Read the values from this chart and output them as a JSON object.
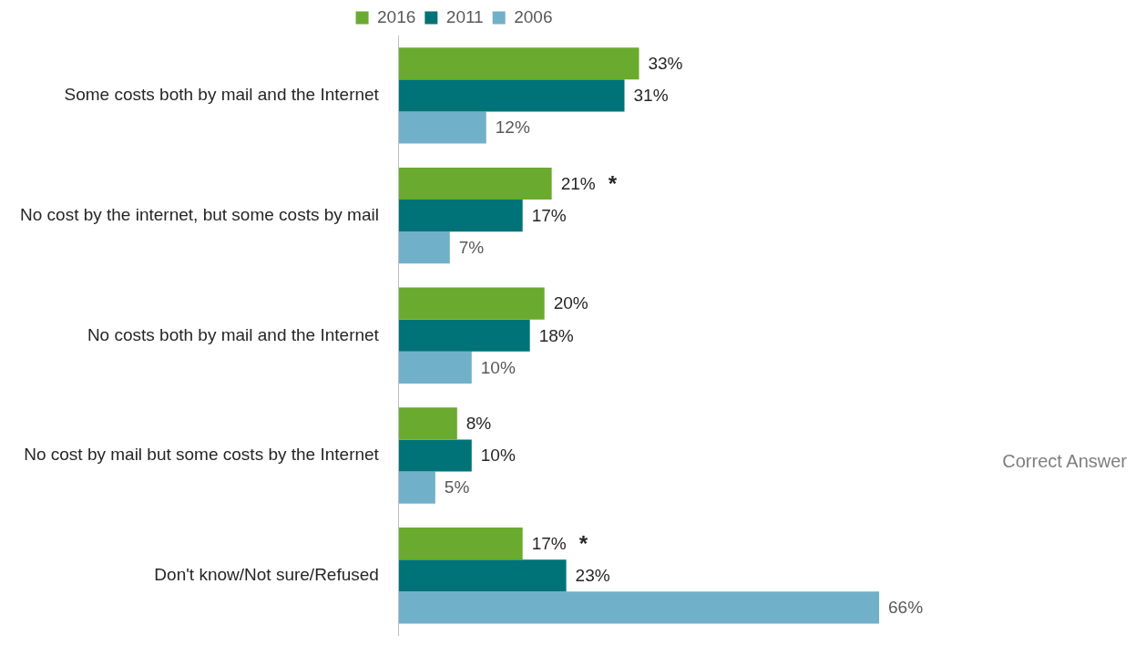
{
  "chart_data": {
    "type": "bar",
    "orientation": "horizontal",
    "legend": "top",
    "categories": [
      "Some costs both by mail and the Internet",
      "No cost by the internet, but some costs by mail",
      "No costs both by mail and the Internet",
      "No cost by mail but some costs by the Internet",
      "Don't know/Not sure/Refused"
    ],
    "series": [
      {
        "name": "2016",
        "color": "#6aaa2e",
        "values": [
          33,
          21,
          20,
          8,
          17
        ],
        "value_labels": [
          "33%",
          "21%",
          "20%",
          "8%",
          "17%"
        ]
      },
      {
        "name": "2011",
        "color": "#007378",
        "values": [
          31,
          17,
          18,
          10,
          23
        ],
        "value_labels": [
          "31%",
          "17%",
          "18%",
          "10%",
          "23%"
        ]
      },
      {
        "name": "2006",
        "color": "#70b1c9",
        "values": [
          12,
          7,
          10,
          5,
          66
        ],
        "value_labels": [
          "12%",
          "7%",
          "10%",
          "5%",
          "66%"
        ]
      }
    ],
    "annotations": [
      "*",
      "*",
      "Correct Answer"
    ]
  }
}
